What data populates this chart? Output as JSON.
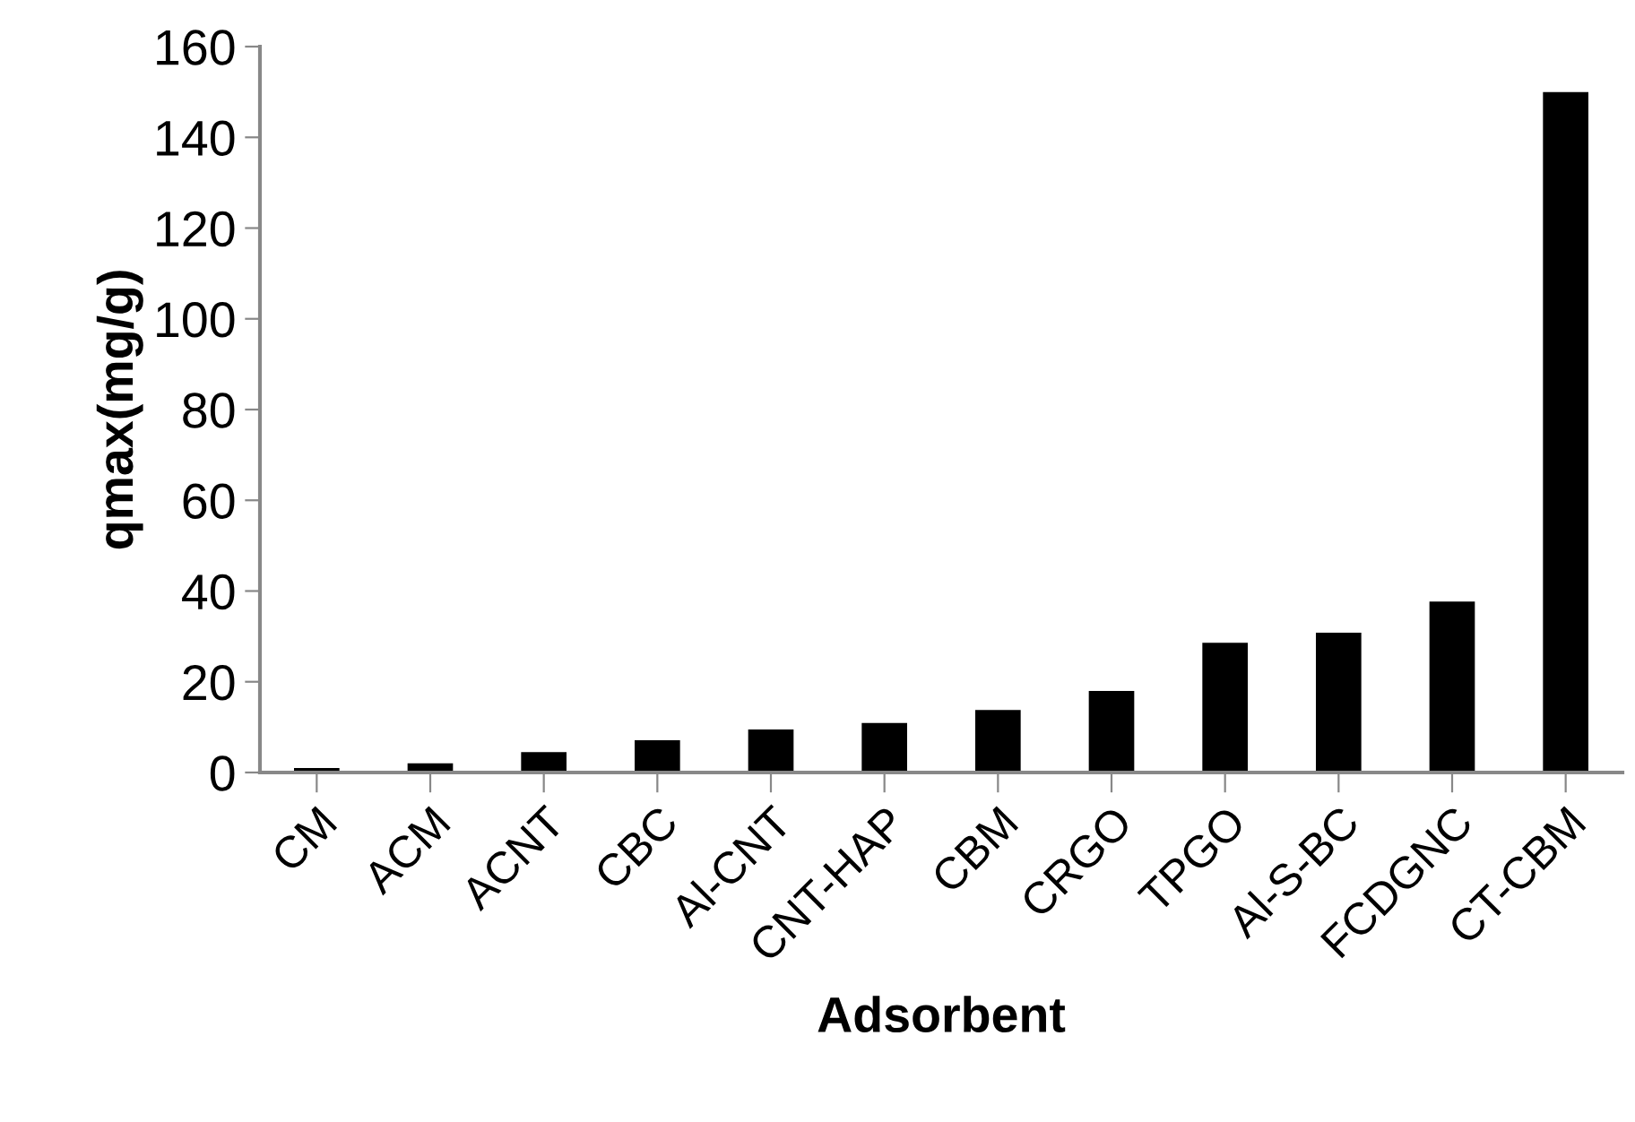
{
  "chart_data": {
    "type": "bar",
    "xlabel": "Adsorbent",
    "ylabel": "qmax(mg/g)",
    "categories": [
      "CM",
      "ACM",
      "ACNT",
      "CBC",
      "Al-CNT",
      "CNT-HAP",
      "CBM",
      "CRGO",
      "TPGO",
      "Al-S-BC",
      "FCDGNC",
      "CT-CBM"
    ],
    "values": [
      1,
      2,
      4.5,
      7.1,
      9.5,
      10.9,
      13.8,
      18,
      28.6,
      30.8,
      37.7,
      150
    ],
    "color": "#000000",
    "ylim": [
      0,
      160
    ],
    "yticks": [
      0,
      20,
      40,
      60,
      80,
      100,
      120,
      140,
      160
    ],
    "grid": false,
    "legend": false
  }
}
